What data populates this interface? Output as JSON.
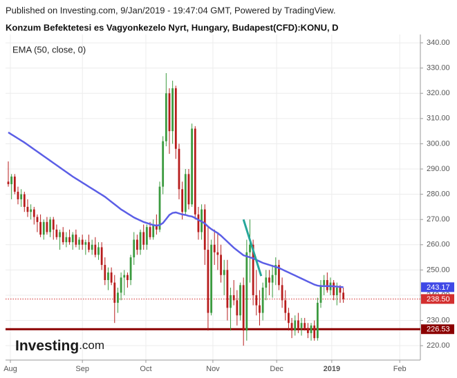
{
  "chart_data": {
    "type": "candlestick",
    "published": "Published on Investing.com, 9/Jan/2019 - 19:47:04 GMT, Powered by TradingView.",
    "title": "Konzum Befektetesi es Vagyonkezelo Nyrt, Hungary, Budapest(CFD):KONU, D",
    "indicator_label": "EMA (50, close, 0)",
    "logo": {
      "brand": "Investing",
      "suffix": ".com"
    },
    "up_color": "#3a9a3e",
    "down_color": "#b71c1c",
    "open": [
      285,
      284,
      287,
      281,
      278,
      280,
      275,
      273,
      274,
      271,
      269,
      264,
      269,
      265,
      270,
      266,
      263,
      265,
      261,
      263,
      261,
      264,
      260,
      262,
      260,
      261,
      258,
      260,
      256,
      259,
      252,
      246,
      249,
      245,
      237,
      241,
      247,
      248,
      246,
      255,
      262,
      258,
      265,
      260,
      267,
      263,
      268,
      266,
      283,
      301,
      320,
      305,
      322,
      298,
      282,
      273,
      288,
      276,
      306,
      272,
      265,
      274,
      258,
      233,
      260,
      257,
      256,
      248,
      250,
      235,
      240,
      238,
      232,
      244,
      226,
      257,
      260,
      240,
      236,
      233,
      243,
      247,
      245,
      248,
      252,
      244,
      238,
      233,
      229,
      226,
      230,
      227,
      229,
      227,
      225,
      228,
      223,
      237,
      244,
      246,
      242,
      245,
      240,
      243,
      241
    ],
    "high": [
      293,
      288,
      288,
      283,
      282,
      281,
      278,
      276,
      275,
      272,
      272,
      270,
      271,
      271,
      271,
      268,
      266,
      267,
      265,
      266,
      265,
      266,
      263,
      264,
      262,
      264,
      262,
      263,
      261,
      261,
      255,
      251,
      251,
      248,
      243,
      249,
      250,
      249,
      256,
      265,
      264,
      266,
      268,
      268,
      269,
      270,
      272,
      285,
      303,
      328,
      322,
      325,
      323,
      300,
      285,
      290,
      290,
      308,
      307,
      275,
      276,
      276,
      267,
      262,
      266,
      265,
      260,
      254,
      254,
      243,
      246,
      242,
      245,
      247,
      262,
      270,
      262,
      250,
      242,
      245,
      250,
      250,
      252,
      255,
      254,
      247,
      242,
      235,
      231,
      232,
      233,
      231,
      231,
      229,
      229,
      230,
      239,
      246,
      248,
      249,
      247,
      246,
      245,
      244,
      243
    ],
    "low": [
      283,
      278,
      280,
      276,
      275,
      273,
      271,
      270,
      268,
      265,
      263,
      262,
      264,
      263,
      262,
      262,
      258,
      260,
      259,
      260,
      258,
      259,
      258,
      258,
      256,
      257,
      256,
      255,
      254,
      250,
      244,
      242,
      244,
      229,
      233,
      238,
      240,
      243,
      244,
      252,
      256,
      256,
      258,
      258,
      262,
      262,
      264,
      265,
      280,
      299,
      296,
      300,
      294,
      278,
      270,
      272,
      274,
      275,
      270,
      262,
      262,
      252,
      226,
      232,
      252,
      250,
      245,
      240,
      230,
      226,
      236,
      228,
      230,
      220,
      222,
      245,
      236,
      232,
      228,
      230,
      238,
      240,
      239,
      244,
      242,
      235,
      230,
      226,
      223,
      224,
      225,
      224,
      226,
      223,
      222,
      222,
      222,
      235,
      240,
      241,
      240,
      238,
      236,
      237,
      237
    ],
    "close": [
      284,
      287,
      281,
      278,
      280,
      275,
      273,
      274,
      271,
      269,
      264,
      269,
      265,
      270,
      266,
      263,
      265,
      261,
      263,
      261,
      264,
      260,
      262,
      260,
      261,
      258,
      260,
      256,
      259,
      252,
      246,
      249,
      245,
      237,
      241,
      247,
      248,
      246,
      255,
      262,
      258,
      265,
      260,
      267,
      263,
      268,
      266,
      283,
      301,
      320,
      305,
      322,
      298,
      282,
      273,
      288,
      276,
      306,
      272,
      265,
      274,
      258,
      233,
      260,
      257,
      256,
      248,
      250,
      235,
      240,
      238,
      232,
      244,
      226,
      257,
      260,
      240,
      236,
      233,
      243,
      247,
      245,
      248,
      252,
      244,
      238,
      233,
      229,
      226,
      230,
      227,
      229,
      227,
      225,
      228,
      223,
      237,
      244,
      246,
      242,
      245,
      240,
      243,
      241,
      238.5
    ],
    "ema": {
      "color": "#5b5ee6",
      "values": [
        304.5,
        303.7,
        302.9,
        302.1,
        301.3,
        300.5,
        299.6,
        298.7,
        297.8,
        296.9,
        296.0,
        295.1,
        294.2,
        293.3,
        292.4,
        291.5,
        290.6,
        289.7,
        288.8,
        287.9,
        287.0,
        286.2,
        285.4,
        284.6,
        283.8,
        283.0,
        282.2,
        281.4,
        280.6,
        279.8,
        279.0,
        278.0,
        277.0,
        276.0,
        275.0,
        274.0,
        273.2,
        272.4,
        271.6,
        270.8,
        270.2,
        269.6,
        269.0,
        268.6,
        268.2,
        267.8,
        267.6,
        267.8,
        268.6,
        270.2,
        271.8,
        272.6,
        272.8,
        272.4,
        272.0,
        271.8,
        271.4,
        271.2,
        270.6,
        269.8,
        269.2,
        268.4,
        267.2,
        266.2,
        265.4,
        264.6,
        263.6,
        262.4,
        261.2,
        260.0,
        258.8,
        257.8,
        256.8,
        255.8,
        255.4,
        255.0,
        254.6,
        254.0,
        253.4,
        252.8,
        252.4,
        252.0,
        251.6,
        251.2,
        250.8,
        250.2,
        249.6,
        249.0,
        248.4,
        247.8,
        247.2,
        246.6,
        246.0,
        245.4,
        244.8,
        244.2,
        243.8,
        243.6,
        243.6,
        243.6,
        243.6,
        243.5,
        243.4,
        243.3,
        243.17
      ]
    },
    "trendline": {
      "x": [
        73,
        78.5
      ],
      "values": [
        270,
        247.6
      ],
      "color": "#26a69a"
    },
    "price_lines": [
      {
        "value": 243.17,
        "color": "#3f48e6",
        "line": "none"
      },
      {
        "value": 238.5,
        "label": "238.50",
        "color": "#d32f2f",
        "line": "dotted"
      },
      {
        "value": 226.53,
        "color": "#8b0000",
        "line": "solid"
      }
    ],
    "xlim": [
      -0.86,
      127.9
    ],
    "xticks": [
      {
        "value": 0.64,
        "label": "Aug"
      },
      {
        "value": 23,
        "label": "Sep"
      },
      {
        "value": 42.7,
        "label": "Oct"
      },
      {
        "value": 63.5,
        "label": "Nov"
      },
      {
        "value": 83.3,
        "label": "Dec"
      },
      {
        "value": 100.4,
        "label": "2019"
      },
      {
        "value": 121.5,
        "label": "Feb"
      }
    ],
    "ylim": [
      214.3,
      343.3
    ],
    "yticks": [
      {
        "value": 220,
        "label": "220.00"
      },
      {
        "value": 230,
        "label": "230.00"
      },
      {
        "value": 240,
        "label": "240.00"
      },
      {
        "value": 250,
        "label": "250.00"
      },
      {
        "value": 260,
        "label": "260.00"
      },
      {
        "value": 270,
        "label": "270.00"
      },
      {
        "value": 280,
        "label": "280.00"
      },
      {
        "value": 290,
        "label": "290.00"
      },
      {
        "value": 300,
        "label": "300.00"
      },
      {
        "value": 310,
        "label": "310.00"
      },
      {
        "value": 320,
        "label": "320.00"
      },
      {
        "value": 330,
        "label": "330.00"
      },
      {
        "value": 340,
        "label": "340.00"
      }
    ],
    "grid": true
  }
}
